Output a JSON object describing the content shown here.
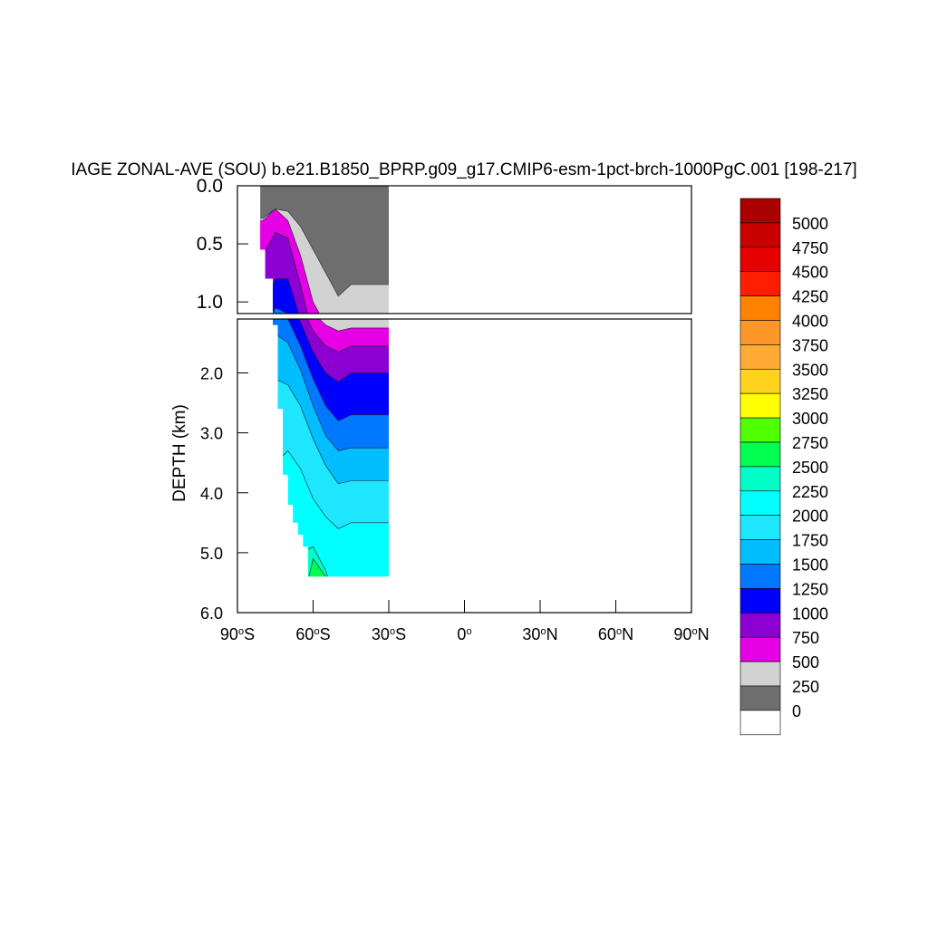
{
  "chart_data": {
    "type": "heatmap",
    "title": "IAGE ZONAL-AVE (SOU) b.e21.B1850_BPRP.g09_g17.CMIP6-esm-1pct-brch-1000PgC.001 [198-217]",
    "xlabel": "",
    "ylabel": "DEPTH (km)",
    "xlim": [
      -90,
      90
    ],
    "top_panel_ylim": [
      0.0,
      1.1
    ],
    "bottom_panel_ylim": [
      1.1,
      6.0
    ],
    "x_ticks": [
      {
        "value": -90,
        "num": "90",
        "hemi": "S"
      },
      {
        "value": -60,
        "num": "60",
        "hemi": "S"
      },
      {
        "value": -30,
        "num": "30",
        "hemi": "S"
      },
      {
        "value": 0,
        "num": "0",
        "hemi": ""
      },
      {
        "value": 30,
        "num": "30",
        "hemi": "N"
      },
      {
        "value": 60,
        "num": "60",
        "hemi": "N"
      },
      {
        "value": 90,
        "num": "90",
        "hemi": "N"
      }
    ],
    "top_y_ticks": [
      {
        "value": 0.0,
        "label": "0.0"
      },
      {
        "value": 0.5,
        "label": "0.5"
      },
      {
        "value": 1.0,
        "label": "1.0"
      }
    ],
    "bottom_y_ticks": [
      {
        "value": 2.0,
        "label": "2.0"
      },
      {
        "value": 3.0,
        "label": "3.0"
      },
      {
        "value": 4.0,
        "label": "4.0"
      },
      {
        "value": 5.0,
        "label": "5.0"
      },
      {
        "value": 6.0,
        "label": "6.0"
      }
    ],
    "colorbar": {
      "levels": [
        "0",
        "250",
        "500",
        "750",
        "1000",
        "1250",
        "1500",
        "1750",
        "2000",
        "2250",
        "2500",
        "2750",
        "3000",
        "3250",
        "3500",
        "3750",
        "4000",
        "4250",
        "4500",
        "4750",
        "5000"
      ],
      "colors": [
        "#ffffff",
        "#6e6e6e",
        "#d2d2d2",
        "#e600e6",
        "#8c00d2",
        "#0000ff",
        "#0078ff",
        "#00beff",
        "#1ee6ff",
        "#00ffff",
        "#00ffc8",
        "#00ff50",
        "#50ff00",
        "#ffff00",
        "#ffd21e",
        "#ffaa32",
        "#ff9628",
        "#ff8200",
        "#ff1e00",
        "#e60000",
        "#c80000",
        "#aa0000"
      ]
    },
    "contour_bands": [
      {
        "level": 250,
        "color": "#6e6e6e",
        "ridge": [
          0.0,
          0.0,
          0.0,
          0.0,
          0.0,
          0.0,
          0.0,
          0.0
        ]
      },
      {
        "level": 500,
        "color": "#d2d2d2",
        "ridge": [
          0.28,
          0.2,
          0.22,
          0.35,
          0.55,
          0.75,
          0.95,
          0.85
        ]
      },
      {
        "level": 750,
        "color": "#e600e6",
        "ridge": [
          0.3,
          0.2,
          0.3,
          0.6,
          1.0,
          1.2,
          1.3,
          1.25
        ]
      },
      {
        "level": 1000,
        "color": "#8c00d2",
        "ridge": [
          0.6,
          0.4,
          0.45,
          0.85,
          1.3,
          1.55,
          1.65,
          1.55
        ]
      },
      {
        "level": 1250,
        "color": "#0000ff",
        "ridge": [
          1.1,
          0.8,
          0.8,
          1.15,
          1.65,
          2.0,
          2.15,
          2.0
        ]
      },
      {
        "level": 1500,
        "color": "#0078ff",
        "ridge": [
          1.3,
          1.05,
          1.1,
          1.55,
          2.1,
          2.55,
          2.8,
          2.7
        ]
      },
      {
        "level": 1750,
        "color": "#00beff",
        "ridge": [
          1.5,
          1.35,
          1.5,
          1.95,
          2.55,
          3.05,
          3.3,
          3.25
        ]
      },
      {
        "level": 2000,
        "color": "#1ee6ff",
        "ridge": [
          2.3,
          2.1,
          2.2,
          2.55,
          3.1,
          3.55,
          3.85,
          3.8
        ]
      },
      {
        "level": 2250,
        "color": "#00ffff",
        "ridge": [
          6.0,
          3.5,
          3.3,
          3.6,
          4.1,
          4.4,
          4.6,
          4.5
        ]
      },
      {
        "level": 2500,
        "color": "#00ffc8",
        "ridge": [
          6.0,
          6.0,
          6.0,
          5.0,
          4.9,
          5.3,
          6.0,
          6.0
        ]
      },
      {
        "level": 2750,
        "color": "#00ff50",
        "ridge": [
          6.0,
          6.0,
          6.0,
          6.0,
          5.1,
          5.4,
          6.0,
          6.0
        ]
      }
    ],
    "section_lat": [
      -80,
      -75,
      -70,
      -65,
      -60,
      -55,
      -50,
      -45
    ],
    "ocean_mask": [
      {
        "lat": -81,
        "depth": 0.55
      },
      {
        "lat": -79,
        "depth": 0.8
      },
      {
        "lat": -76,
        "depth": 1.2
      },
      {
        "lat": -74,
        "depth": 2.6
      },
      {
        "lat": -72,
        "depth": 3.7
      },
      {
        "lat": -70,
        "depth": 4.2
      },
      {
        "lat": -68,
        "depth": 4.5
      },
      {
        "lat": -66,
        "depth": 4.7
      },
      {
        "lat": -64,
        "depth": 4.9
      },
      {
        "lat": -62,
        "depth": 5.4
      },
      {
        "lat": -48,
        "depth": 5.4
      },
      {
        "lat": -42,
        "depth": 5.4
      },
      {
        "lat": -40,
        "depth": 5.4
      }
    ],
    "coast_lat": -30,
    "legend_placement": "right",
    "grid": false
  }
}
